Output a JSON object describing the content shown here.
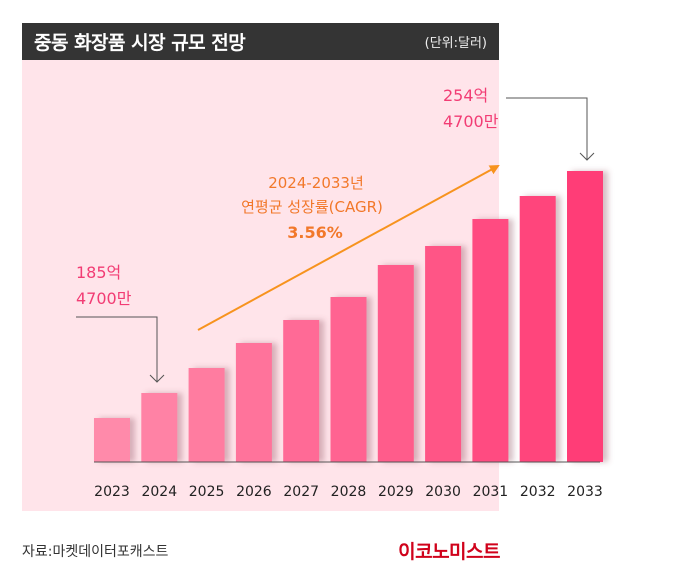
{
  "header": {
    "title": "중동 화장품 시장 규모 전망",
    "unit": "(단위:달러)"
  },
  "footer": {
    "source": "자료:마켓데이터포캐스트",
    "logo": "이코노미스트"
  },
  "colors": {
    "header_bg": "#343434",
    "panel_bg": "#ffe4ea",
    "bar_start": "#ff8aaa",
    "bar_end": "#ff3d77",
    "label_pink": "#f23c74",
    "cagr_orange": "#f2782a",
    "arrow_orange": "#f7931e"
  },
  "chart_data": {
    "type": "bar",
    "title": "중동 화장품 시장 규모 전망",
    "unit": "달러",
    "xlabel": "",
    "ylabel": "",
    "categories": [
      "2023",
      "2024",
      "2025",
      "2026",
      "2027",
      "2028",
      "2029",
      "2030",
      "2031",
      "2032",
      "2033"
    ],
    "values_relative": [
      44,
      69,
      94,
      119,
      142,
      165,
      197,
      216,
      243,
      266,
      291
    ],
    "annotations": [
      {
        "category": "2024",
        "line1": "185억",
        "line2": "4700만",
        "value_usd": 18547000000
      },
      {
        "category": "2033",
        "line1": "254억",
        "line2": "4700만",
        "value_usd": 25447000000
      }
    ],
    "cagr": {
      "line1": "2024-2033년",
      "line2": "연평균 성장률(CAGR)",
      "value": "3.56%"
    },
    "grid": false,
    "legend": "none"
  }
}
